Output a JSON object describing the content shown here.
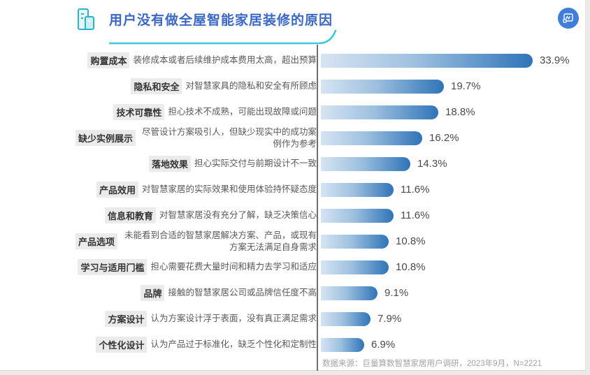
{
  "header": {
    "title": "用户没有做全屋智能家居装修的原因",
    "title_icon": "buildings-icon",
    "logo_icon": "juliang-suanshu-logo-icon"
  },
  "colors": {
    "title_blue": "#3b68c4",
    "swoosh_teal": "#3ec9d6",
    "bar_gradient_start": "#d6e4f3",
    "bar_gradient_end": "#2f74b8",
    "logo_circle_blue": "#3f7fd8",
    "divider_gray": "#6e6e6e"
  },
  "chart_data": {
    "type": "bar",
    "orientation": "horizontal",
    "title": "用户没有做全屋智能家居装修的原因",
    "categories": [
      "购置成本",
      "隐私和安全",
      "技术可靠性",
      "缺少实例展示",
      "落地效果",
      "产品效用",
      "信息和教育",
      "产品选项",
      "学习与适用门槛",
      "品牌",
      "方案设计",
      "个性化设计"
    ],
    "descriptions": [
      "装修成本或者后续维护成本费用太高，超出预算",
      "对智慧家具的隐私和安全有所顾虑",
      "担心技术不成熟，可能出现故障或问题",
      "尽管设计方案吸引人，但缺少现实中的成功案例作为参考",
      "担心实际交付与前期设计不一致",
      "对智慧家居的实际效果和使用体验持怀疑态度",
      "对智慧家居没有充分了解，缺乏决策信心",
      "未能看到合适的智慧家居解决方案、产品，或现有方案无法满足自身需求",
      "担心需要花费大量时间和精力去学习和适应",
      "接触的智慧家居公司或品牌信任度不高",
      "认为方案设计浮于表面，没有真正满足需求",
      "认为产品过于标准化，缺乏个性化和定制性"
    ],
    "values": [
      33.9,
      19.7,
      18.8,
      16.2,
      14.3,
      11.6,
      11.6,
      10.8,
      10.8,
      9.1,
      7.9,
      6.9
    ],
    "value_labels": [
      "33.9%",
      "19.7%",
      "18.8%",
      "16.2%",
      "14.3%",
      "11.6%",
      "11.6%",
      "10.8%",
      "10.8%",
      "9.1%",
      "7.9%",
      "6.9%"
    ],
    "xlim": [
      0,
      36
    ],
    "grid": false,
    "legend": false,
    "value_label_position": "right-of-bar"
  },
  "footer": {
    "source": "数据来源：巨量算数智慧家居用户调研，2023年9月，N=2221"
  }
}
